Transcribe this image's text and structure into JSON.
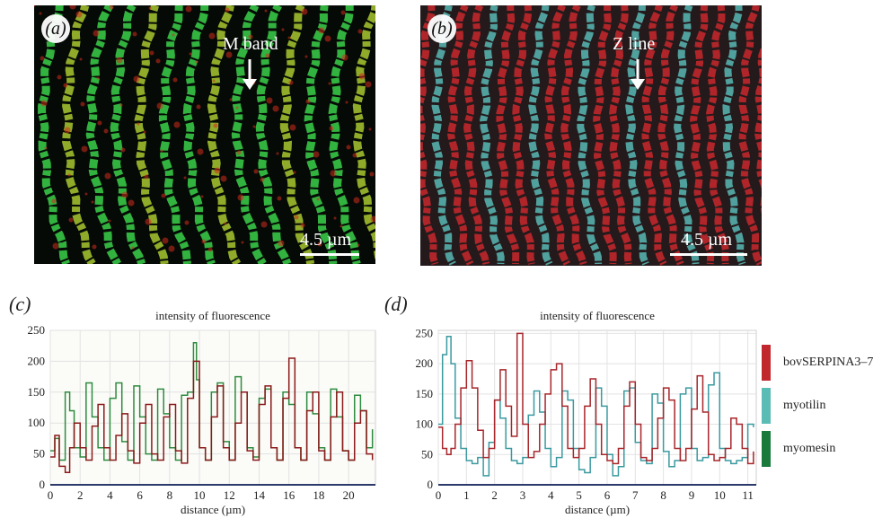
{
  "panels": {
    "a": {
      "label": "(a)",
      "annotation": "M band",
      "scale": "4.5 µm"
    },
    "b": {
      "label": "(b)",
      "annotation": "Z line",
      "scale": "4.5 µm"
    },
    "c": {
      "label": "(c)"
    },
    "d": {
      "label": "(d)"
    }
  },
  "colors": {
    "bovSERPINA3_7": "#b81e2b",
    "myotilin": "#4bb6b2",
    "myomesin": "#1f7a3a"
  },
  "legend": [
    {
      "label": "bovSERPINA3–7",
      "color": "#c0282d"
    },
    {
      "label": "myotilin",
      "color": "#5bbbb5"
    },
    {
      "label": "myomesin",
      "color": "#1a7a3c"
    }
  ],
  "chart_data": [
    {
      "type": "line",
      "title": "intensity of fluorescence",
      "xlabel": "distance (µm)",
      "ylabel": "",
      "xlim": [
        0,
        21.8
      ],
      "ylim": [
        0,
        250
      ],
      "xticks": [
        0,
        2,
        4,
        6,
        8,
        10,
        12,
        14,
        16,
        18,
        20
      ],
      "yticks": [
        0,
        50,
        100,
        150,
        200,
        250
      ],
      "grid": true,
      "series": [
        {
          "name": "myomesin",
          "color": "#2e8b3f",
          "x": [
            0,
            0.3,
            0.6,
            1.0,
            1.3,
            1.6,
            2.0,
            2.4,
            2.8,
            3.2,
            3.6,
            4.0,
            4.4,
            4.8,
            5.2,
            5.6,
            6.0,
            6.4,
            6.8,
            7.2,
            7.6,
            8.0,
            8.4,
            8.8,
            9.2,
            9.6,
            9.8,
            10.0,
            10.4,
            10.8,
            11.2,
            11.6,
            12.0,
            12.4,
            12.8,
            13.2,
            13.6,
            14.0,
            14.4,
            14.8,
            15.2,
            15.6,
            16.0,
            16.4,
            16.8,
            17.2,
            17.6,
            18.0,
            18.4,
            18.8,
            19.2,
            19.6,
            20.0,
            20.4,
            20.8,
            21.2,
            21.6
          ],
          "y": [
            55,
            75,
            40,
            150,
            120,
            60,
            45,
            165,
            110,
            60,
            40,
            140,
            165,
            70,
            40,
            160,
            110,
            50,
            40,
            155,
            115,
            60,
            40,
            145,
            150,
            230,
            170,
            60,
            40,
            150,
            165,
            70,
            40,
            175,
            150,
            60,
            45,
            140,
            155,
            60,
            40,
            150,
            130,
            60,
            40,
            150,
            115,
            60,
            40,
            155,
            110,
            55,
            40,
            145,
            120,
            60,
            90
          ]
        },
        {
          "name": "bovSERPINA3–7",
          "color": "#8b1a1a",
          "x": [
            0,
            0.3,
            0.6,
            1.0,
            1.3,
            1.6,
            2.0,
            2.4,
            2.8,
            3.2,
            3.6,
            4.0,
            4.4,
            4.8,
            5.2,
            5.6,
            6.0,
            6.4,
            6.8,
            7.2,
            7.6,
            8.0,
            8.4,
            8.8,
            9.2,
            9.6,
            10.0,
            10.4,
            10.8,
            11.2,
            11.6,
            12.0,
            12.4,
            12.8,
            13.2,
            13.6,
            14.0,
            14.4,
            14.8,
            15.2,
            15.6,
            16.0,
            16.4,
            16.8,
            17.2,
            17.6,
            18.0,
            18.4,
            18.8,
            19.2,
            19.6,
            20.0,
            20.4,
            20.8,
            21.2,
            21.6
          ],
          "y": [
            45,
            80,
            30,
            20,
            60,
            100,
            60,
            40,
            95,
            130,
            60,
            40,
            80,
            115,
            55,
            35,
            100,
            130,
            50,
            40,
            110,
            130,
            55,
            35,
            140,
            200,
            60,
            40,
            110,
            160,
            60,
            40,
            100,
            150,
            55,
            40,
            130,
            160,
            60,
            40,
            140,
            205,
            60,
            40,
            120,
            150,
            55,
            40,
            110,
            150,
            55,
            40,
            100,
            120,
            50,
            40
          ]
        }
      ]
    },
    {
      "type": "line",
      "title": "intensity of fluorescence",
      "xlabel": "distance (µm)",
      "ylabel": "",
      "xlim": [
        0,
        11.3
      ],
      "ylim": [
        0,
        255
      ],
      "xticks": [
        0,
        1,
        2,
        3,
        4,
        5,
        6,
        7,
        8,
        9,
        10,
        11
      ],
      "yticks": [
        0,
        50,
        100,
        150,
        200,
        250
      ],
      "grid": true,
      "series": [
        {
          "name": "myotilin",
          "color": "#3a9aa0",
          "x": [
            0,
            0.15,
            0.3,
            0.45,
            0.6,
            0.8,
            1.0,
            1.2,
            1.4,
            1.6,
            1.8,
            2.0,
            2.2,
            2.4,
            2.6,
            2.8,
            3.0,
            3.2,
            3.4,
            3.6,
            3.8,
            4.0,
            4.2,
            4.4,
            4.6,
            4.8,
            5.0,
            5.2,
            5.4,
            5.6,
            5.8,
            6.0,
            6.2,
            6.4,
            6.6,
            6.8,
            7.0,
            7.2,
            7.4,
            7.6,
            7.8,
            8.0,
            8.2,
            8.4,
            8.6,
            8.8,
            9.0,
            9.2,
            9.4,
            9.6,
            9.8,
            10.0,
            10.2,
            10.4,
            10.6,
            10.8,
            11.0,
            11.2
          ],
          "y": [
            100,
            215,
            245,
            200,
            110,
            60,
            40,
            35,
            45,
            15,
            70,
            140,
            110,
            60,
            40,
            35,
            45,
            115,
            155,
            120,
            60,
            30,
            45,
            155,
            140,
            60,
            25,
            20,
            45,
            160,
            130,
            50,
            15,
            30,
            155,
            160,
            70,
            40,
            35,
            150,
            135,
            55,
            30,
            40,
            150,
            160,
            60,
            40,
            45,
            165,
            185,
            60,
            40,
            35,
            40,
            45,
            100,
            95
          ]
        },
        {
          "name": "bovSERPINA3–7",
          "color": "#a8262b",
          "x": [
            0,
            0.15,
            0.3,
            0.45,
            0.6,
            0.8,
            1.0,
            1.2,
            1.4,
            1.6,
            1.8,
            2.0,
            2.2,
            2.4,
            2.6,
            2.8,
            3.0,
            3.2,
            3.4,
            3.6,
            3.8,
            4.0,
            4.2,
            4.4,
            4.6,
            4.8,
            5.0,
            5.2,
            5.4,
            5.6,
            5.8,
            6.0,
            6.2,
            6.4,
            6.6,
            6.8,
            7.0,
            7.2,
            7.4,
            7.6,
            7.8,
            8.0,
            8.2,
            8.4,
            8.6,
            8.8,
            9.0,
            9.2,
            9.4,
            9.6,
            9.8,
            10.0,
            10.2,
            10.4,
            10.6,
            10.8,
            11.0,
            11.2
          ],
          "y": [
            95,
            60,
            50,
            60,
            100,
            160,
            205,
            160,
            90,
            45,
            60,
            140,
            190,
            130,
            80,
            250,
            100,
            45,
            55,
            100,
            150,
            190,
            200,
            130,
            60,
            45,
            60,
            130,
            175,
            100,
            50,
            40,
            35,
            60,
            130,
            170,
            100,
            45,
            40,
            60,
            110,
            160,
            140,
            60,
            40,
            60,
            125,
            180,
            120,
            50,
            40,
            45,
            60,
            110,
            100,
            60,
            35,
            55
          ]
        }
      ]
    }
  ]
}
